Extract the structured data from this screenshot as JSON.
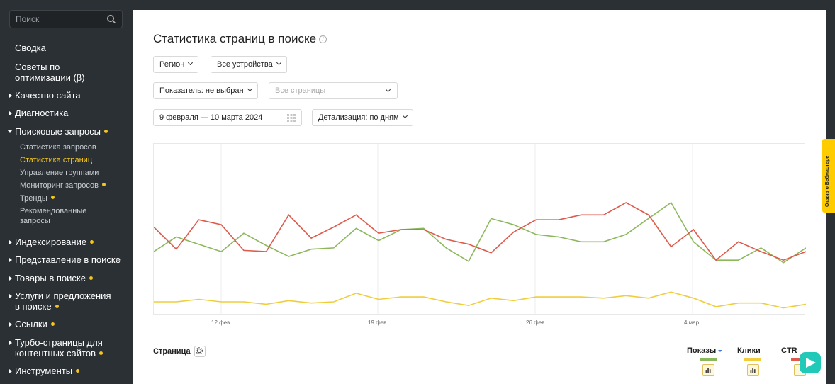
{
  "sidebar": {
    "search_placeholder": "Поиск",
    "items": [
      {
        "label": "Сводка"
      },
      {
        "label": "Советы по оптимизации (β)"
      },
      {
        "label": "Качество сайта"
      },
      {
        "label": "Диагностика"
      },
      {
        "label": "Поисковые запросы"
      },
      {
        "label": "Индексирование"
      },
      {
        "label": "Представление в поиске"
      },
      {
        "label": "Товары в поиске"
      },
      {
        "label": "Услуги и предложения в поиске"
      },
      {
        "label": "Ссылки"
      },
      {
        "label": "Турбо-страницы для контентных сайтов"
      },
      {
        "label": "Инструменты"
      }
    ],
    "subitems": [
      {
        "label": "Статистика запросов"
      },
      {
        "label": "Статистика страниц"
      },
      {
        "label": "Управление группами"
      },
      {
        "label": "Мониторинг запросов"
      },
      {
        "label": "Тренды"
      },
      {
        "label": "Рекомендованные запросы"
      }
    ]
  },
  "main": {
    "title": "Статистика страниц в поиске",
    "filters": {
      "region": "Регион",
      "devices": "Все устройства",
      "indicator": "Показатель: не выбран",
      "pages_placeholder": "Все страницы",
      "date_range": "9 февраля — 10 марта 2024",
      "detail": "Детализация: по дням"
    },
    "table": {
      "page_col": "Страница",
      "cols": [
        "Показы",
        "Клики",
        "CTR"
      ]
    }
  },
  "chart_data": {
    "type": "line",
    "x_tick_labels": [
      "12 фев",
      "19 фев",
      "26 фев",
      "4 мар"
    ],
    "series": [
      {
        "name": "Показы",
        "color": "#8cb85c",
        "values": [
          52,
          64,
          58,
          52,
          67,
          57,
          48,
          54,
          55,
          71,
          61,
          70,
          71,
          55,
          44,
          79,
          74,
          66,
          64,
          60,
          60,
          66,
          79,
          92,
          60,
          45,
          45,
          55,
          43,
          55
        ]
      },
      {
        "name": "Клики",
        "color": "#f0cd3c",
        "values": [
          11,
          11,
          13,
          11,
          11,
          9,
          12,
          10,
          11,
          18,
          13,
          15,
          15,
          11,
          8,
          14,
          12,
          15,
          15,
          15,
          14,
          16,
          14,
          19,
          14,
          7,
          10,
          10,
          6,
          9
        ]
      },
      {
        "name": "CTR",
        "color": "#dd5a4c",
        "values": [
          72,
          54,
          78,
          74,
          53,
          52,
          82,
          63,
          72,
          82,
          67,
          70,
          70,
          62,
          58,
          51,
          68,
          78,
          78,
          82,
          82,
          92,
          82,
          56,
          70,
          45,
          60,
          52,
          45,
          52
        ]
      }
    ],
    "ylim": [
      0,
      140
    ]
  }
}
